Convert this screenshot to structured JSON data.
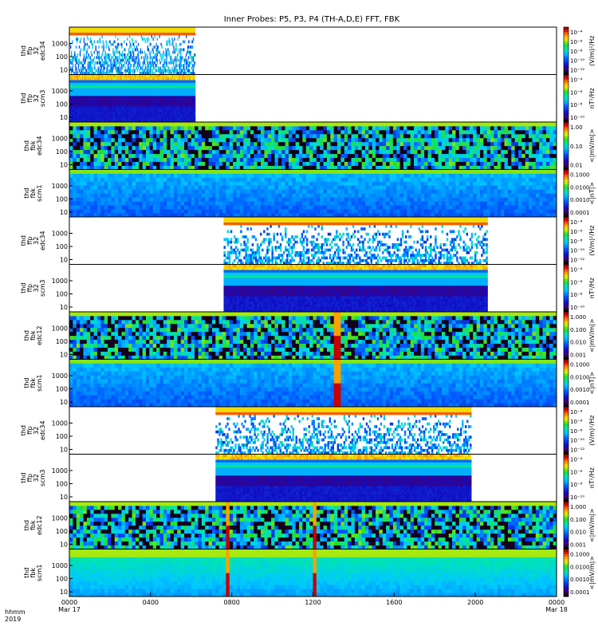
{
  "chart_data": {
    "type": "heatmap",
    "title": "Inner Probes: P5, P3, P4 (TH-A,D,E) FFT, FBK",
    "xaxis": {
      "row_labels": [
        "hhmm",
        "2019"
      ],
      "start": "2019-03-17 00:00",
      "end": "2019-03-18 00:00",
      "tick_labels": [
        "0000",
        "0400",
        "0800",
        "1200",
        "1600",
        "2000",
        "0000"
      ],
      "tick_hours": [
        0,
        4,
        8,
        12,
        16,
        20,
        24
      ],
      "tick_dates": [
        "Mar 17",
        "",
        "",
        "",
        "",
        "",
        "Mar 18"
      ]
    },
    "yaxis": {
      "scale": "log",
      "tick_labels": [
        "10",
        "100",
        "1000"
      ]
    },
    "colormap": "rainbow",
    "panels": [
      {
        "label": [
          "thd",
          "ffp",
          "32",
          "edc34"
        ],
        "units": "(V/m)²/Hz",
        "colorbar_ticks": [
          "10⁻¹²",
          "10⁻¹⁰",
          "10⁻⁸",
          "10⁻⁶",
          "10⁻⁴"
        ],
        "coverage_hours": [
          0.0,
          6.2
        ],
        "style": "edc"
      },
      {
        "label": [
          "thd",
          "ffp",
          "32",
          "scm3"
        ],
        "units": "nT²/Hz",
        "colorbar_ticks": [
          "10⁻¹⁰",
          "10⁻⁸",
          "10⁻⁶",
          "10⁻⁴"
        ],
        "coverage_hours": [
          0.0,
          6.2
        ],
        "style": "scm"
      },
      {
        "label": [
          "thd",
          "fbk",
          "edc34"
        ],
        "units": "<|mV/m|>",
        "colorbar_ticks": [
          "0.01",
          "0.10",
          "1.00"
        ],
        "coverage_hours": [
          0.0,
          24.0
        ],
        "style": "fbk_e"
      },
      {
        "label": [
          "thd",
          "fbk",
          "scm1"
        ],
        "units": "<|nT|>",
        "colorbar_ticks": [
          "0.0001",
          "0.0010",
          "0.0100",
          "0.1000"
        ],
        "coverage_hours": [
          0.0,
          24.0
        ],
        "style": "fbk_b"
      },
      {
        "label": [
          "thd",
          "ffp",
          "32",
          "edc34"
        ],
        "units": "(V/m)²/Hz",
        "colorbar_ticks": [
          "10⁻¹²",
          "10⁻¹⁰",
          "10⁻⁸",
          "10⁻⁶",
          "10⁻⁴"
        ],
        "coverage_hours": [
          7.6,
          20.6
        ],
        "style": "edc"
      },
      {
        "label": [
          "thd",
          "ffp",
          "32",
          "scm3"
        ],
        "units": "nT²/Hz",
        "colorbar_ticks": [
          "10⁻¹⁰",
          "10⁻⁸",
          "10⁻⁶",
          "10⁻⁴"
        ],
        "coverage_hours": [
          7.6,
          20.6
        ],
        "style": "scm"
      },
      {
        "label": [
          "thd",
          "fbk",
          "edc12"
        ],
        "units": "<|mV/m|>",
        "colorbar_ticks": [
          "0.001",
          "0.010",
          "0.100",
          "1.000"
        ],
        "coverage_hours": [
          0.0,
          24.0
        ],
        "style": "fbk_e2",
        "gaps_hours": [
          [
            13.0,
            13.4
          ]
        ]
      },
      {
        "label": [
          "thd",
          "fbk",
          "scm1"
        ],
        "units": "<|nT|>",
        "colorbar_ticks": [
          "0.0001",
          "0.0010",
          "0.0100",
          "0.1000"
        ],
        "coverage_hours": [
          0.0,
          24.0
        ],
        "style": "fbk_b2",
        "gaps_hours": [
          [
            13.0,
            13.4
          ]
        ]
      },
      {
        "label": [
          "thd",
          "ffp",
          "32",
          "edc34"
        ],
        "units": "(V/m)²/Hz",
        "colorbar_ticks": [
          "10⁻¹²",
          "10⁻¹⁰",
          "10⁻⁸",
          "10⁻⁶",
          "10⁻⁴"
        ],
        "coverage_hours": [
          7.2,
          19.8
        ],
        "style": "edc"
      },
      {
        "label": [
          "thd",
          "ffp",
          "32",
          "scm3"
        ],
        "units": "nT²/Hz",
        "colorbar_ticks": [
          "10⁻¹⁰",
          "10⁻⁸",
          "10⁻⁶",
          "10⁻⁴"
        ],
        "coverage_hours": [
          7.2,
          19.8
        ],
        "style": "scm"
      },
      {
        "label": [
          "thd",
          "fbk",
          "edc12"
        ],
        "units": "<|mV/m|>",
        "colorbar_ticks": [
          "0.001",
          "0.010",
          "0.100",
          "1.000"
        ],
        "coverage_hours": [
          0.0,
          24.0
        ],
        "style": "fbk_e2",
        "gaps_hours": [
          [
            7.7,
            7.85
          ],
          [
            12.0,
            12.25
          ]
        ]
      },
      {
        "label": [
          "thd",
          "fbk",
          "scm1"
        ],
        "units": "<|mV/m|>",
        "colorbar_ticks": [
          "0.0001",
          "0.0010",
          "0.0100",
          "0.1000"
        ],
        "coverage_hours": [
          0.0,
          24.0
        ],
        "style": "fbk_b3",
        "gaps_hours": [
          [
            7.7,
            7.85
          ],
          [
            12.0,
            12.25
          ]
        ]
      }
    ]
  }
}
